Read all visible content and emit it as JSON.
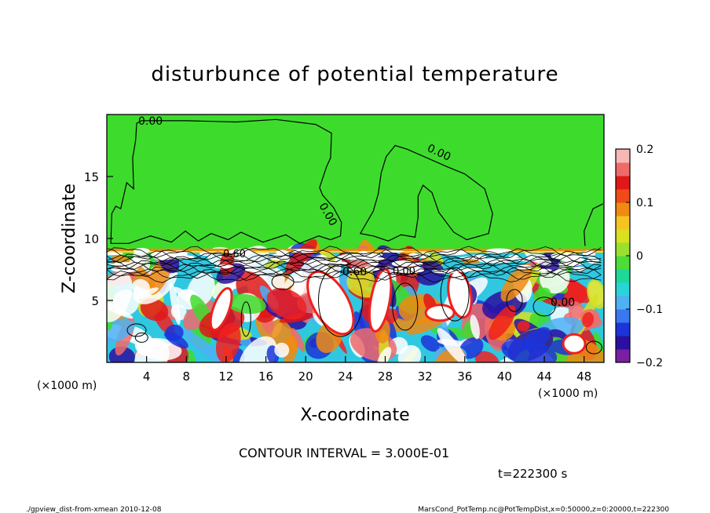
{
  "chart_data": {
    "type": "heatmap",
    "title": "disturbunce of potential temperature",
    "xlabel": "X-coordinate",
    "ylabel": "Z-coordinate",
    "x_unit": "(×1000 m)",
    "y_unit": "(×1000 m)",
    "xlim": [
      0,
      50
    ],
    "ylim": [
      0,
      20
    ],
    "x_ticks": [
      4,
      8,
      12,
      16,
      20,
      24,
      28,
      32,
      36,
      40,
      44,
      48
    ],
    "y_ticks": [
      5,
      10,
      15
    ],
    "colorbar": {
      "range": [
        -0.2,
        0.2
      ],
      "ticks": [
        0.2,
        0.1,
        0,
        -0.1,
        -0.2
      ],
      "tick_labels": [
        "0.2",
        "0.1",
        "0",
        "−0.1",
        "−0.2"
      ],
      "colors": [
        "#7a1fa2",
        "#2a0fa0",
        "#1c34d8",
        "#3a78f0",
        "#4fb0f5",
        "#2ad4d8",
        "#1ed89a",
        "#4ddc38",
        "#9be030",
        "#d8e020",
        "#f5c41e",
        "#f08a12",
        "#f04a18",
        "#e01818",
        "#f06a6a",
        "#f7b7b7"
      ]
    },
    "contour_labels": [
      "0.00",
      "0.00",
      "0.00",
      "0.60",
      "0.60",
      "0.00",
      "0.00"
    ],
    "contour_interval_text": "CONTOUR INTERVAL = 3.000E-01",
    "time_text": "t=222300 s"
  },
  "footer": {
    "left": "./gpview_dist-from-xmean  2010-12-08",
    "right": "MarsCond_PotTemp.nc@PotTempDist,x=0:50000,z=0:20000,t=222300"
  }
}
